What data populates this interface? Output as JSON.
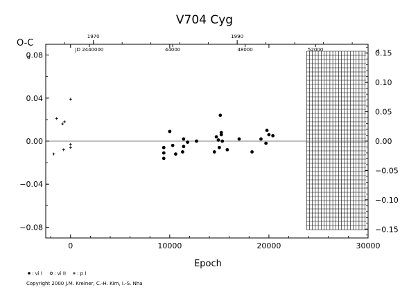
{
  "chart_data": {
    "type": "scatter",
    "title": "V704  Cyg",
    "xlabel": "Epoch",
    "ylabel": "O-C",
    "ylabel_suffix": "d",
    "ylabel_right_suffix": "d",
    "xlim": [
      -2500,
      30000
    ],
    "ylim": [
      -0.09,
      0.09
    ],
    "ylim_right": [
      -0.165,
      0.165
    ],
    "x_ticks": [
      0,
      10000,
      20000,
      30000
    ],
    "x_tick_labels": [
      "0",
      "10000",
      "20000",
      "30000"
    ],
    "y_ticks": [
      -0.08,
      -0.04,
      0.0,
      0.04,
      0.08
    ],
    "y_tick_labels": [
      "−0.08",
      "−0.04",
      "0.00",
      "0.04",
      "0.08"
    ],
    "y_right_ticks": [
      -0.15,
      -0.1,
      -0.05,
      0.0,
      0.05,
      0.1,
      0.15
    ],
    "y_right_tick_labels": [
      "−0.15",
      "−0.10",
      "−0.05",
      "0.00",
      "0.05",
      "0.10",
      "0.15"
    ],
    "top_year_ticks": [
      {
        "label": "1970",
        "epoch": 2300
      },
      {
        "label": "1990",
        "epoch": 16800
      }
    ],
    "top_jd_ticks": [
      {
        "label": "JD 2440000",
        "epoch": 1900
      },
      {
        "label": "44000",
        "epoch": 10300
      },
      {
        "label": "48000",
        "epoch": 17600
      },
      {
        "label": "52000",
        "epoch": 24700
      }
    ],
    "hatched_region": {
      "x_start": 23800,
      "x_end": 29800
    },
    "zero_line": 0,
    "legend": [
      {
        "symbol": "filled-circle",
        "label": ": vi I"
      },
      {
        "symbol": "open-circle",
        "label": ": vi II"
      },
      {
        "symbol": "plus",
        "label": ": p I"
      }
    ],
    "series": [
      {
        "symbol": "filled-circle",
        "points": [
          [
            9400,
            -0.016
          ],
          [
            9400,
            -0.011
          ],
          [
            9400,
            -0.006
          ],
          [
            10000,
            0.009
          ],
          [
            10300,
            -0.004
          ],
          [
            10600,
            -0.012
          ],
          [
            11300,
            -0.01
          ],
          [
            11400,
            0.002
          ],
          [
            11400,
            -0.005
          ],
          [
            11800,
            -0.001
          ],
          [
            12700,
            0.0
          ],
          [
            14500,
            -0.01
          ],
          [
            14700,
            0.004
          ],
          [
            14900,
            0.001
          ],
          [
            15000,
            -0.006
          ],
          [
            15100,
            0.024
          ],
          [
            15200,
            0.008
          ],
          [
            15200,
            0.006
          ],
          [
            15300,
            0.0
          ],
          [
            15800,
            -0.008
          ],
          [
            17000,
            0.002
          ],
          [
            18300,
            -0.01
          ],
          [
            19200,
            0.002
          ],
          [
            19700,
            -0.002
          ],
          [
            19800,
            0.01
          ],
          [
            20000,
            0.006
          ],
          [
            20400,
            0.005
          ]
        ]
      },
      {
        "symbol": "plus",
        "points": [
          [
            -1700,
            -0.012
          ],
          [
            -1400,
            0.021
          ],
          [
            -800,
            0.016
          ],
          [
            -700,
            -0.008
          ],
          [
            -600,
            0.018
          ],
          [
            0,
            0.039
          ],
          [
            0,
            -0.003
          ],
          [
            0,
            -0.006
          ]
        ]
      }
    ]
  },
  "copyright": "Copyright 2000 J.M. Kreiner, C.-H. Kim, I.-S. Nha"
}
